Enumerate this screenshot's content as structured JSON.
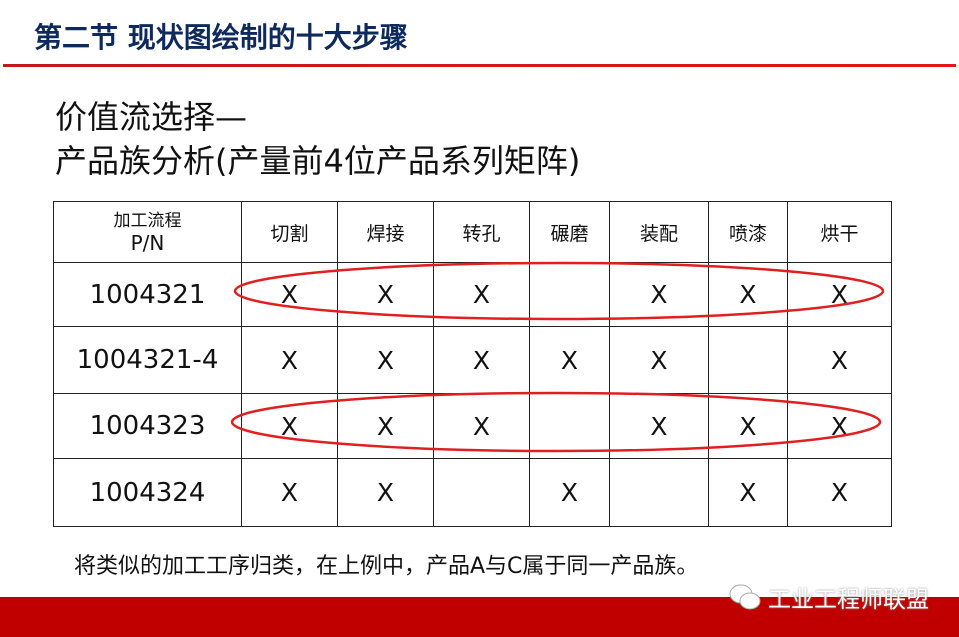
{
  "header": {
    "title": "第二节  现状图绘制的十大步骤",
    "accent": "#c00000",
    "title_color": "#0e2a5c"
  },
  "heading": {
    "line1": "价值流选择—",
    "line2": "产品族分析(产量前4位产品系列矩阵)"
  },
  "table": {
    "corner": {
      "line1": "加工流程",
      "line2": "P/N"
    },
    "columns": [
      "切割",
      "焊接",
      "转孔",
      "碾磨",
      "装配",
      "喷漆",
      "烘干"
    ],
    "rows": [
      {
        "pn": "1004321",
        "cells": [
          "X",
          "X",
          "X",
          "",
          "X",
          "X",
          "X"
        ],
        "circled": true
      },
      {
        "pn": "1004321-4",
        "cells": [
          "X",
          "X",
          "X",
          "X",
          "X",
          "",
          "X"
        ],
        "circled": false
      },
      {
        "pn": "1004323",
        "cells": [
          "X",
          "X",
          "X",
          "",
          "X",
          "X",
          "X"
        ],
        "circled": true
      },
      {
        "pn": "1004324",
        "cells": [
          "X",
          "X",
          "",
          "X",
          "",
          "X",
          "X"
        ],
        "circled": false
      }
    ]
  },
  "note": "将类似的加工工序归类，在上例中，产品A与C属于同一产品族。",
  "watermark": {
    "icon": "wechat-icon",
    "text": "工业工程师联盟"
  }
}
